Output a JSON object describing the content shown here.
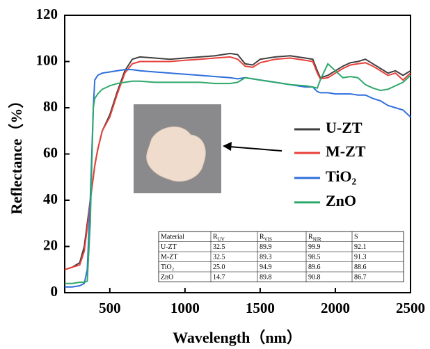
{
  "chart_data": {
    "type": "line",
    "x_label": "Wavelength（nm）",
    "y_label": "Reflectance（%）",
    "xlim": [
      200,
      2500
    ],
    "ylim": [
      0,
      120
    ],
    "xticks": [
      500,
      1000,
      1500,
      2000,
      2500
    ],
    "yticks": [
      0,
      20,
      40,
      60,
      80,
      100,
      120
    ],
    "x": [
      200,
      250,
      300,
      330,
      350,
      370,
      390,
      400,
      420,
      450,
      500,
      550,
      600,
      650,
      700,
      800,
      900,
      1000,
      1100,
      1200,
      1300,
      1350,
      1400,
      1450,
      1500,
      1600,
      1700,
      1800,
      1850,
      1880,
      1900,
      1950,
      2000,
      2050,
      2100,
      2150,
      2200,
      2250,
      2300,
      2350,
      2400,
      2450,
      2500
    ],
    "series": [
      {
        "name": "U-ZT",
        "color": "#3f3f3f",
        "values": [
          10,
          11,
          13,
          20,
          30,
          40,
          50,
          55,
          62,
          70,
          77,
          87,
          96,
          101,
          102,
          101.5,
          101,
          101.5,
          102,
          102.5,
          103.5,
          103,
          99,
          98.5,
          101,
          102,
          102.5,
          101.5,
          101,
          96,
          93,
          94,
          96,
          98,
          99.5,
          100,
          101,
          99,
          97,
          95,
          96,
          94,
          96
        ]
      },
      {
        "name": "M-ZT",
        "color": "#e8403a",
        "values": [
          10,
          11,
          12,
          18,
          28,
          40,
          50,
          55,
          62,
          70,
          76,
          86,
          95,
          99,
          100,
          100,
          100,
          100.5,
          101,
          101.5,
          102,
          101,
          98,
          97.5,
          99.5,
          101,
          101.5,
          100.5,
          100,
          95,
          92.5,
          93,
          95,
          97,
          98.5,
          99,
          99.5,
          98,
          96,
          94,
          95,
          92,
          95
        ]
      },
      {
        "name": "TiO₂",
        "color": "#2f6fdc",
        "values": [
          2.5,
          2.5,
          3,
          4,
          10,
          40,
          80,
          92,
          94,
          95,
          95.5,
          96,
          96.5,
          96.5,
          96,
          95.5,
          95,
          94.5,
          94,
          93.5,
          93,
          92.5,
          93,
          92.5,
          92,
          91,
          90,
          89,
          89,
          87,
          86.5,
          86.5,
          86,
          86,
          86,
          85.5,
          85.5,
          84,
          83,
          81,
          80,
          79,
          76
        ]
      },
      {
        "name": "ZnO",
        "color": "#2ea86a",
        "values": [
          4,
          4,
          4.5,
          4.5,
          5,
          30,
          80,
          84,
          86,
          88,
          89.5,
          90.5,
          91,
          91.5,
          91.5,
          91,
          91,
          91,
          91,
          90.5,
          90.5,
          91,
          93,
          92.5,
          92,
          91,
          90,
          89.5,
          89,
          88.5,
          92,
          99,
          96,
          93,
          93.5,
          93,
          90,
          88.5,
          87.5,
          88,
          89.5,
          91,
          94
        ]
      }
    ],
    "table": {
      "header": [
        {
          "text": "Material"
        },
        {
          "text": "R",
          "sub": "UV"
        },
        {
          "text": "R",
          "sub": "VIS"
        },
        {
          "text": "R",
          "sub": "NIR"
        },
        {
          "text": "S"
        }
      ],
      "rows": [
        [
          "U-ZT",
          "32.5",
          "89.9",
          "99.9",
          "92.1"
        ],
        [
          "M-ZT",
          "32.5",
          "89.3",
          "98.5",
          "91.3"
        ],
        [
          "TiO₂",
          "25.0",
          "94.9",
          "89.6",
          "88.6"
        ],
        [
          "ZnO",
          "14.7",
          "89.8",
          "90.8",
          "86.7"
        ]
      ]
    }
  }
}
